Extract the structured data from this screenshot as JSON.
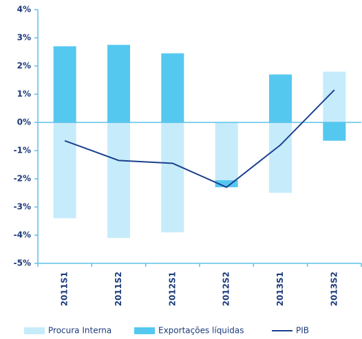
{
  "chart_data": {
    "type": "bar",
    "categories": [
      "2011S1",
      "2011S2",
      "2012S1",
      "2012S2",
      "2013S1",
      "2013S2"
    ],
    "series": [
      {
        "name": "Procura Interna",
        "color": "#c6ecfb",
        "values": [
          -3.4,
          -4.1,
          -3.9,
          -2.05,
          -2.5,
          1.8
        ]
      },
      {
        "name": "Exportações líquidas",
        "color": "#55c8f0",
        "values": [
          2.7,
          2.75,
          2.45,
          -0.25,
          1.7,
          -0.65
        ]
      },
      {
        "name": "PIB",
        "type": "line",
        "color": "#1a3f8f",
        "values": [
          -0.65,
          -1.35,
          -1.45,
          -2.3,
          -0.8,
          1.15
        ]
      }
    ],
    "ylim": [
      -5,
      4
    ],
    "yticks": [
      {
        "value": -5,
        "label": "-5%"
      },
      {
        "value": -4,
        "label": "-4%"
      },
      {
        "value": -3,
        "label": "-3%"
      },
      {
        "value": -2,
        "label": "-2%"
      },
      {
        "value": -1,
        "label": "-1%"
      },
      {
        "value": 0,
        "label": "0%"
      },
      {
        "value": 1,
        "label": "1%"
      },
      {
        "value": 2,
        "label": "2%"
      },
      {
        "value": 3,
        "label": "3%"
      },
      {
        "value": 4,
        "label": "4%"
      }
    ]
  }
}
